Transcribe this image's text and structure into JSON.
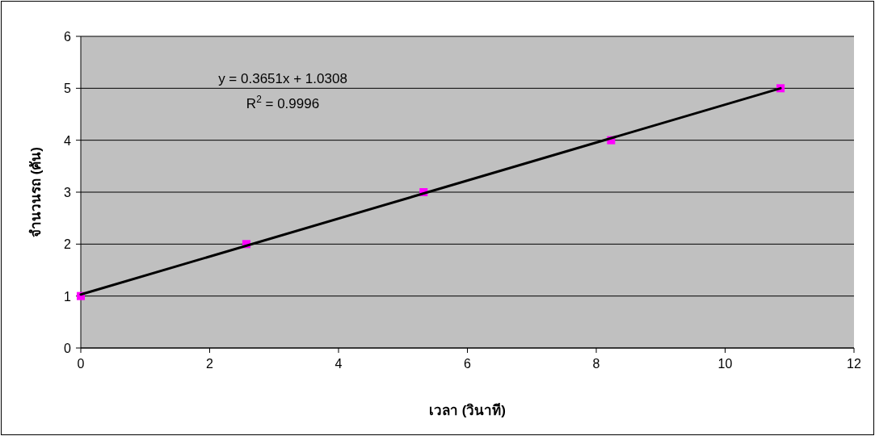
{
  "chart_data": {
    "type": "scatter",
    "xlabel": "เวลา (วินาที)",
    "ylabel": "จำนวนรถ (คัน)",
    "annotations": [
      "y = 0.3651x + 1.0308",
      "R$^{2}$ = 0.9996"
    ],
    "series": [
      {
        "color": "#ff00ff",
        "marker": "square",
        "x": [
          0,
          2.57,
          5.32,
          8.23,
          10.86
        ],
        "values": [
          1,
          2,
          3,
          4,
          5
        ]
      },
      {
        "type": "line",
        "color": "#000000",
        "marker": "none",
        "x": [
          0,
          10.86
        ],
        "values": [
          1.03,
          5.0
        ]
      }
    ],
    "xlim": [
      0,
      12
    ],
    "ylim": [
      0,
      6
    ],
    "xticks": [
      0,
      2,
      4,
      6,
      8,
      10,
      12
    ],
    "yticks": [
      0,
      1,
      2,
      3,
      4,
      5,
      6
    ],
    "grid": "y"
  }
}
